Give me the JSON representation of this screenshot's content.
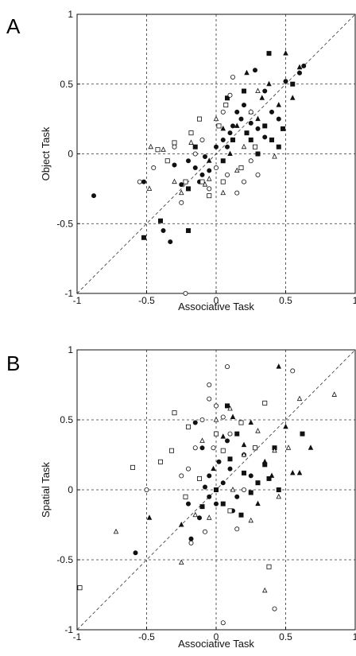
{
  "chart_data": [
    {
      "panel": "A",
      "type": "scatter",
      "xlabel": "Associative Task",
      "ylabel": "Object Task",
      "xlim": [
        -1,
        1
      ],
      "ylim": [
        -1,
        1
      ],
      "xticks": [
        "-1",
        "-0.5",
        "0",
        "0.5",
        "1"
      ],
      "yticks": [
        "1",
        "0.5",
        "0",
        "-0.5",
        "-1"
      ],
      "grid": true,
      "diagonal": true,
      "series": [
        {
          "marker": "filled-circle",
          "points": [
            [
              -0.88,
              -0.3
            ],
            [
              -0.52,
              -0.2
            ],
            [
              -0.38,
              -0.55
            ],
            [
              -0.33,
              -0.63
            ],
            [
              -0.3,
              -0.08
            ],
            [
              -0.25,
              -0.22
            ],
            [
              -0.2,
              -0.05
            ],
            [
              -0.15,
              -0.1
            ],
            [
              -0.12,
              -0.2
            ],
            [
              -0.1,
              -0.15
            ],
            [
              -0.05,
              -0.12
            ],
            [
              0.0,
              0.05
            ],
            [
              0.05,
              0.1
            ],
            [
              0.1,
              0.15
            ],
            [
              0.12,
              0.2
            ],
            [
              0.15,
              0.3
            ],
            [
              0.18,
              0.25
            ],
            [
              0.25,
              0.22
            ],
            [
              0.3,
              0.18
            ],
            [
              0.35,
              0.12
            ],
            [
              0.4,
              0.3
            ],
            [
              0.45,
              0.25
            ],
            [
              0.5,
              0.52
            ],
            [
              0.6,
              0.58
            ],
            [
              0.63,
              0.63
            ],
            [
              0.2,
              0.35
            ],
            [
              0.08,
              0.05
            ],
            [
              -0.08,
              -0.02
            ],
            [
              0.28,
              0.6
            ],
            [
              0.35,
              0.45
            ]
          ]
        },
        {
          "marker": "filled-square",
          "points": [
            [
              -0.52,
              -0.6
            ],
            [
              -0.4,
              -0.48
            ],
            [
              -0.2,
              -0.25
            ],
            [
              -0.15,
              0.05
            ],
            [
              0.08,
              0.4
            ],
            [
              0.2,
              0.45
            ],
            [
              0.25,
              0.1
            ],
            [
              0.3,
              0.0
            ],
            [
              0.35,
              0.2
            ],
            [
              0.4,
              0.1
            ],
            [
              0.45,
              0.05
            ],
            [
              0.48,
              0.18
            ],
            [
              0.38,
              0.72
            ],
            [
              0.55,
              0.5
            ],
            [
              -0.2,
              -0.55
            ],
            [
              0.05,
              -0.05
            ],
            [
              0.12,
              0.1
            ],
            [
              0.22,
              0.15
            ]
          ]
        },
        {
          "marker": "filled-triangle",
          "points": [
            [
              0.22,
              0.58
            ],
            [
              0.33,
              0.4
            ],
            [
              0.38,
              0.5
            ],
            [
              0.45,
              0.35
            ],
            [
              0.5,
              0.72
            ],
            [
              0.55,
              0.4
            ],
            [
              0.6,
              0.62
            ],
            [
              0.3,
              0.25
            ],
            [
              0.15,
              0.2
            ],
            [
              0.1,
              0.0
            ],
            [
              0.05,
              0.18
            ],
            [
              0.25,
              0.3
            ],
            [
              -0.05,
              -0.05
            ]
          ]
        },
        {
          "marker": "open-circle",
          "points": [
            [
              -0.55,
              -0.2
            ],
            [
              -0.45,
              -0.1
            ],
            [
              -0.3,
              0.05
            ],
            [
              -0.25,
              -0.35
            ],
            [
              -0.1,
              0.1
            ],
            [
              -0.05,
              -0.25
            ],
            [
              0.05,
              0.3
            ],
            [
              0.1,
              0.42
            ],
            [
              0.15,
              -0.28
            ],
            [
              0.2,
              -0.2
            ],
            [
              0.25,
              -0.05
            ],
            [
              0.3,
              -0.15
            ],
            [
              0.12,
              0.55
            ],
            [
              0.25,
              0.3
            ],
            [
              -0.22,
              -1.0
            ],
            [
              0.0,
              -0.1
            ],
            [
              0.08,
              -0.15
            ],
            [
              -0.15,
              0.0
            ]
          ]
        },
        {
          "marker": "open-square",
          "points": [
            [
              -0.42,
              0.03
            ],
            [
              -0.35,
              -0.05
            ],
            [
              -0.3,
              0.08
            ],
            [
              -0.22,
              -0.2
            ],
            [
              -0.12,
              0.25
            ],
            [
              -0.05,
              -0.3
            ],
            [
              0.02,
              0.2
            ],
            [
              0.07,
              0.35
            ],
            [
              0.18,
              -0.1
            ],
            [
              0.28,
              0.05
            ],
            [
              -0.1,
              -0.2
            ],
            [
              0.05,
              -0.2
            ],
            [
              -0.18,
              0.15
            ]
          ]
        },
        {
          "marker": "open-triangle",
          "points": [
            [
              -0.48,
              -0.25
            ],
            [
              -0.38,
              0.03
            ],
            [
              -0.3,
              -0.2
            ],
            [
              -0.18,
              0.08
            ],
            [
              -0.08,
              -0.22
            ],
            [
              0.0,
              0.25
            ],
            [
              0.15,
              -0.12
            ],
            [
              0.3,
              0.45
            ],
            [
              0.42,
              -0.02
            ],
            [
              -0.47,
              0.05
            ],
            [
              0.05,
              -0.28
            ],
            [
              -0.05,
              -0.18
            ],
            [
              0.2,
              0.05
            ],
            [
              -0.25,
              -0.28
            ]
          ]
        }
      ]
    },
    {
      "panel": "B",
      "type": "scatter",
      "xlabel": "Associative Task",
      "ylabel": "Spatial Task",
      "xlim": [
        -1,
        1
      ],
      "ylim": [
        -1,
        1
      ],
      "xticks": [
        "-1",
        "-0.5",
        "0",
        "0.5",
        "1"
      ],
      "yticks": [
        "1",
        "0.5",
        "0",
        "-0.5",
        "-1"
      ],
      "grid": true,
      "diagonal": true,
      "series": [
        {
          "marker": "filled-circle",
          "points": [
            [
              -0.58,
              -0.45
            ],
            [
              -0.15,
              0.48
            ],
            [
              -0.1,
              0.3
            ],
            [
              -0.05,
              0.1
            ],
            [
              0.0,
              -0.1
            ],
            [
              0.05,
              0.05
            ],
            [
              0.1,
              0.15
            ],
            [
              0.15,
              -0.05
            ],
            [
              0.2,
              0.25
            ],
            [
              0.25,
              0.1
            ],
            [
              -0.2,
              -0.1
            ],
            [
              -0.12,
              -0.2
            ],
            [
              -0.05,
              -0.05
            ],
            [
              0.08,
              0.35
            ],
            [
              0.12,
              -0.15
            ],
            [
              -0.18,
              -0.35
            ],
            [
              0.02,
              0.2
            ],
            [
              -0.08,
              0.02
            ]
          ]
        },
        {
          "marker": "filled-square",
          "points": [
            [
              0.08,
              0.6
            ],
            [
              0.15,
              0.4
            ],
            [
              0.2,
              0.12
            ],
            [
              0.3,
              0.05
            ],
            [
              0.35,
              0.18
            ],
            [
              0.38,
              0.08
            ],
            [
              0.42,
              0.3
            ],
            [
              0.45,
              0.0
            ],
            [
              0.05,
              -0.1
            ],
            [
              -0.1,
              -0.12
            ],
            [
              0.1,
              0.22
            ],
            [
              0.25,
              -0.02
            ],
            [
              0.18,
              -0.18
            ],
            [
              0.62,
              0.4
            ],
            [
              0.0,
              0.0
            ]
          ]
        },
        {
          "marker": "filled-triangle",
          "points": [
            [
              -0.48,
              -0.2
            ],
            [
              -0.25,
              -0.25
            ],
            [
              0.12,
              0.52
            ],
            [
              0.25,
              0.48
            ],
            [
              0.35,
              0.2
            ],
            [
              0.4,
              0.1
            ],
            [
              0.5,
              0.45
            ],
            [
              0.55,
              0.12
            ],
            [
              0.6,
              0.12
            ],
            [
              0.68,
              0.3
            ],
            [
              0.3,
              -0.1
            ],
            [
              0.2,
              0.32
            ],
            [
              0.05,
              0.38
            ],
            [
              -0.02,
              0.15
            ],
            [
              0.45,
              0.88
            ]
          ]
        },
        {
          "marker": "open-circle",
          "points": [
            [
              -0.5,
              0.0
            ],
            [
              -0.2,
              0.15
            ],
            [
              -0.15,
              0.3
            ],
            [
              -0.1,
              0.5
            ],
            [
              -0.05,
              0.65
            ],
            [
              0.0,
              0.6
            ],
            [
              0.05,
              0.52
            ],
            [
              0.1,
              0.4
            ],
            [
              -0.25,
              0.1
            ],
            [
              -0.18,
              -0.38
            ],
            [
              0.05,
              -0.95
            ],
            [
              0.42,
              -0.85
            ],
            [
              0.2,
              0.0
            ],
            [
              -0.05,
              0.75
            ],
            [
              0.08,
              0.88
            ],
            [
              0.55,
              0.85
            ],
            [
              -0.08,
              -0.3
            ],
            [
              0.15,
              -0.28
            ],
            [
              -0.02,
              0.3
            ]
          ]
        },
        {
          "marker": "open-square",
          "points": [
            [
              -0.98,
              -0.7
            ],
            [
              -0.6,
              0.16
            ],
            [
              -0.4,
              0.2
            ],
            [
              -0.32,
              0.28
            ],
            [
              -0.3,
              0.55
            ],
            [
              -0.2,
              0.45
            ],
            [
              -0.12,
              0.08
            ],
            [
              0.0,
              0.4
            ],
            [
              0.1,
              -0.15
            ],
            [
              0.18,
              0.48
            ],
            [
              0.35,
              0.62
            ],
            [
              0.38,
              -0.55
            ],
            [
              -0.22,
              -0.05
            ],
            [
              0.05,
              0.28
            ],
            [
              0.28,
              0.3
            ]
          ]
        },
        {
          "marker": "open-triangle",
          "points": [
            [
              -0.72,
              -0.3
            ],
            [
              -0.25,
              -0.52
            ],
            [
              -0.15,
              -0.18
            ],
            [
              -0.1,
              0.35
            ],
            [
              0.0,
              0.5
            ],
            [
              0.1,
              0.58
            ],
            [
              0.2,
              0.25
            ],
            [
              0.3,
              0.42
            ],
            [
              0.35,
              -0.72
            ],
            [
              0.42,
              0.28
            ],
            [
              0.52,
              0.3
            ],
            [
              0.6,
              0.65
            ],
            [
              0.12,
              0.0
            ],
            [
              -0.05,
              -0.2
            ],
            [
              0.25,
              -0.22
            ],
            [
              0.85,
              0.68
            ],
            [
              0.45,
              -0.05
            ]
          ]
        }
      ]
    }
  ],
  "figure": {
    "panel_labels": [
      "A",
      "B"
    ]
  }
}
